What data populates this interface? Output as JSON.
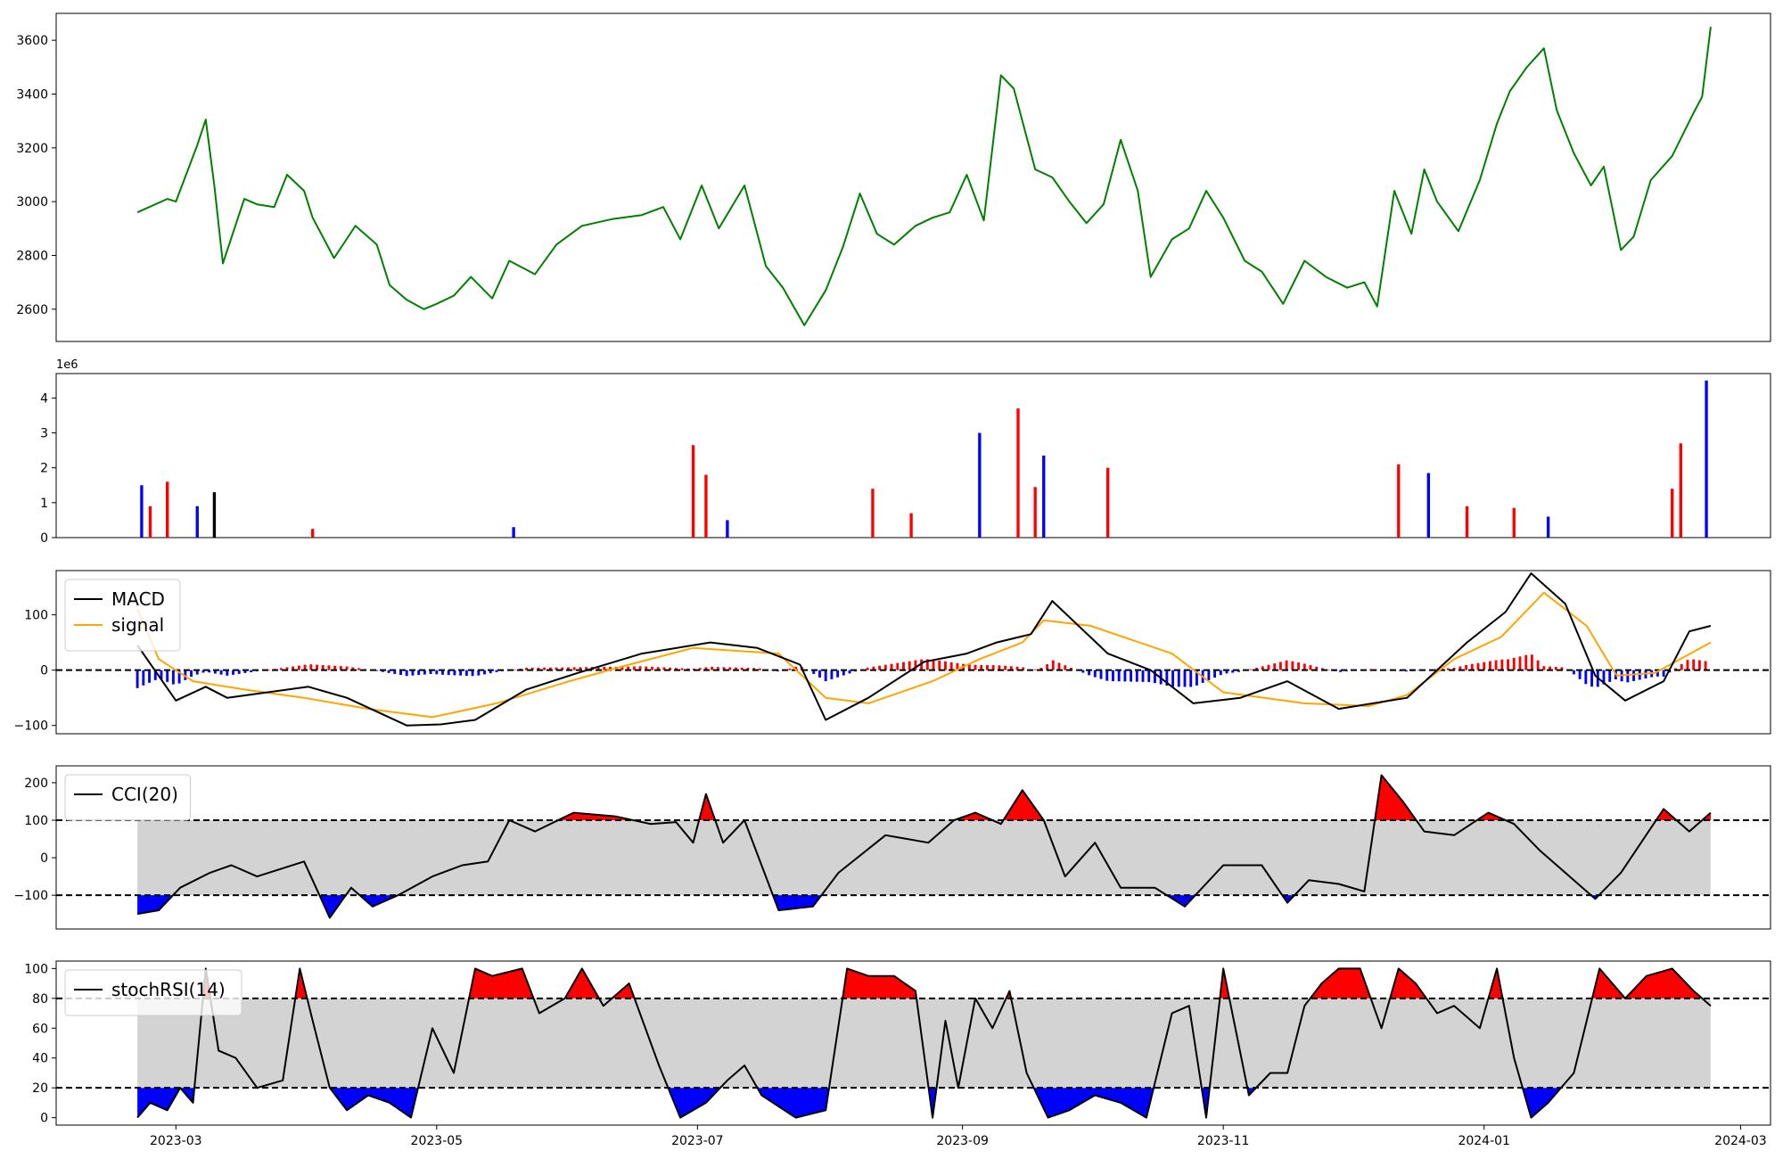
{
  "chart_data": [
    {
      "type": "line",
      "ylim": [
        2480,
        3700
      ],
      "yticks": [
        2600,
        2800,
        3000,
        3200,
        3400,
        3600
      ],
      "color": "#008000",
      "series": [
        {
          "x": [
            "2023-02-20",
            "2023-02-27",
            "2023-03-01",
            "2023-03-06",
            "2023-03-08",
            "2023-03-10",
            "2023-03-12",
            "2023-03-17",
            "2023-03-20",
            "2023-03-24",
            "2023-03-27",
            "2023-03-31",
            "2023-04-02",
            "2023-04-07",
            "2023-04-12",
            "2023-04-17",
            "2023-04-20",
            "2023-04-24",
            "2023-04-28",
            "2023-05-01",
            "2023-05-05",
            "2023-05-09",
            "2023-05-14",
            "2023-05-18",
            "2023-05-24",
            "2023-05-29",
            "2023-06-04",
            "2023-06-11",
            "2023-06-18",
            "2023-06-23",
            "2023-06-27",
            "2023-07-02",
            "2023-07-06",
            "2023-07-12",
            "2023-07-17",
            "2023-07-21",
            "2023-07-26",
            "2023-07-31",
            "2023-08-04",
            "2023-08-08",
            "2023-08-12",
            "2023-08-16",
            "2023-08-21",
            "2023-08-25",
            "2023-08-29",
            "2023-09-02",
            "2023-09-06",
            "2023-09-10",
            "2023-09-13",
            "2023-09-18",
            "2023-09-22",
            "2023-09-26",
            "2023-09-30",
            "2023-10-04",
            "2023-10-08",
            "2023-10-12",
            "2023-10-15",
            "2023-10-20",
            "2023-10-24",
            "2023-10-28",
            "2023-11-01",
            "2023-11-06",
            "2023-11-10",
            "2023-11-15",
            "2023-11-20",
            "2023-11-25",
            "2023-11-30",
            "2023-12-04",
            "2023-12-07",
            "2023-12-11",
            "2023-12-15",
            "2023-12-18",
            "2023-12-21",
            "2023-12-26",
            "2023-12-31",
            "2024-01-04",
            "2024-01-07",
            "2024-01-11",
            "2024-01-15",
            "2024-01-18",
            "2024-01-22",
            "2024-01-26",
            "2024-01-29",
            "2024-02-02",
            "2024-02-05",
            "2024-02-09",
            "2024-02-14",
            "2024-02-19",
            "2024-02-21",
            "2024-02-23"
          ],
          "y": [
            2960,
            3010,
            3000,
            3210,
            3305,
            3060,
            2770,
            3010,
            2990,
            2980,
            3100,
            3040,
            2940,
            2790,
            2910,
            2840,
            2690,
            2635,
            2600,
            2620,
            2650,
            2720,
            2640,
            2780,
            2730,
            2840,
            2910,
            2935,
            2950,
            2980,
            2860,
            3060,
            2900,
            3060,
            2760,
            2680,
            2540,
            2670,
            2830,
            3030,
            2880,
            2840,
            2910,
            2940,
            2960,
            3100,
            2930,
            3470,
            3420,
            3120,
            3090,
            3000,
            2920,
            2990,
            3230,
            3040,
            2720,
            2860,
            2900,
            3040,
            2940,
            2780,
            2740,
            2620,
            2780,
            2720,
            2680,
            2700,
            2610,
            3040,
            2880,
            3120,
            3000,
            2890,
            3080,
            3290,
            3410,
            3500,
            3570,
            3340,
            3180,
            3060,
            3130,
            2820,
            2870,
            3080,
            3170,
            3330,
            3390,
            3650
          ]
        }
      ]
    },
    {
      "type": "bar",
      "ylabel": "",
      "offset_text": "1e6",
      "ylim": [
        0,
        4.7
      ],
      "yticks": [
        0,
        1,
        2,
        3,
        4
      ],
      "colors": {
        "up": "#ff0000",
        "down": "#0000ff",
        "flat": "#000000"
      },
      "series": [
        {
          "x": [
            "2023-02-21",
            "2023-02-23",
            "2023-02-27",
            "2023-03-06",
            "2023-03-10",
            "2023-04-02",
            "2023-05-19",
            "2023-06-30",
            "2023-07-03",
            "2023-07-08",
            "2023-08-11",
            "2023-08-20",
            "2023-09-05",
            "2023-09-14",
            "2023-09-18",
            "2023-09-20",
            "2023-10-05",
            "2023-12-12",
            "2023-12-19",
            "2023-12-28",
            "2024-01-08",
            "2024-01-16",
            "2024-02-14",
            "2024-02-16",
            "2024-02-22"
          ],
          "values": [
            1.5,
            0.9,
            1.6,
            0.9,
            1.3,
            0.25,
            0.3,
            2.65,
            1.8,
            0.5,
            1.4,
            0.7,
            3.0,
            3.7,
            1.45,
            2.35,
            2.0,
            2.1,
            1.85,
            0.9,
            0.85,
            0.6,
            1.4,
            2.7,
            4.5
          ]
        }
      ]
    },
    {
      "type": "line",
      "ylim": [
        -115,
        180
      ],
      "yticks": [
        -100,
        0,
        100
      ],
      "hline": 0,
      "legend": [
        "MACD",
        "signal"
      ],
      "legend_position": "upper-left",
      "series": [
        {
          "name": "MACD",
          "color": "#000000",
          "x": [
            "2023-02-20",
            "2023-03-01",
            "2023-03-08",
            "2023-03-13",
            "2023-04-01",
            "2023-04-10",
            "2023-04-24",
            "2023-05-02",
            "2023-05-10",
            "2023-05-22",
            "2023-06-03",
            "2023-06-18",
            "2023-07-04",
            "2023-07-15",
            "2023-07-25",
            "2023-07-31",
            "2023-08-10",
            "2023-08-23",
            "2023-09-02",
            "2023-09-09",
            "2023-09-17",
            "2023-09-22",
            "2023-10-05",
            "2023-10-15",
            "2023-10-25",
            "2023-11-05",
            "2023-11-16",
            "2023-11-28",
            "2023-12-06",
            "2023-12-14",
            "2023-12-28",
            "2024-01-06",
            "2024-01-12",
            "2024-01-20",
            "2024-01-27",
            "2024-02-03",
            "2024-02-12",
            "2024-02-18",
            "2024-02-23"
          ],
          "values": [
            45,
            -55,
            -30,
            -50,
            -30,
            -50,
            -100,
            -98,
            -90,
            -35,
            -5,
            30,
            50,
            40,
            10,
            -90,
            -50,
            15,
            30,
            50,
            65,
            125,
            30,
            0,
            -60,
            -50,
            -20,
            -70,
            -60,
            -50,
            50,
            105,
            175,
            120,
            -10,
            -55,
            -20,
            70,
            80
          ]
        },
        {
          "name": "signal",
          "color": "#ffa500",
          "x": [
            "2023-02-20",
            "2023-02-25",
            "2023-03-05",
            "2023-03-17",
            "2023-03-31",
            "2023-04-15",
            "2023-04-30",
            "2023-05-15",
            "2023-06-01",
            "2023-06-15",
            "2023-06-30",
            "2023-07-20",
            "2023-07-31",
            "2023-08-10",
            "2023-08-25",
            "2023-09-05",
            "2023-09-15",
            "2023-09-20",
            "2023-10-01",
            "2023-10-20",
            "2023-11-01",
            "2023-11-20",
            "2023-12-05",
            "2023-12-14",
            "2023-12-25",
            "2024-01-05",
            "2024-01-15",
            "2024-01-25",
            "2024-02-01",
            "2024-02-10",
            "2024-02-23"
          ],
          "values": [
            110,
            20,
            -20,
            -35,
            -50,
            -70,
            -85,
            -60,
            -20,
            10,
            40,
            30,
            -50,
            -60,
            -20,
            20,
            50,
            90,
            80,
            30,
            -40,
            -60,
            -65,
            -45,
            20,
            60,
            140,
            80,
            -10,
            -5,
            50
          ]
        }
      ],
      "histogram_colors": {
        "positive": "#ff0000",
        "negative": "#0000ff"
      }
    },
    {
      "type": "line",
      "ylim": [
        -190,
        245
      ],
      "yticks": [
        -100,
        0,
        100,
        200
      ],
      "band": [
        -100,
        100
      ],
      "band_color": "#d3d3d3",
      "fill_above_color": "#ff0000",
      "fill_below_color": "#0000ff",
      "legend": [
        "CCI(20)"
      ],
      "legend_position": "upper-left",
      "series": [
        {
          "name": "CCI(20)",
          "color": "#000000",
          "x": [
            "2023-02-20",
            "2023-02-25",
            "2023-03-02",
            "2023-03-09",
            "2023-03-14",
            "2023-03-20",
            "2023-03-31",
            "2023-04-06",
            "2023-04-11",
            "2023-04-16",
            "2023-04-22",
            "2023-04-30",
            "2023-05-07",
            "2023-05-13",
            "2023-05-18",
            "2023-05-24",
            "2023-06-02",
            "2023-06-12",
            "2023-06-20",
            "2023-06-26",
            "2023-06-30",
            "2023-07-03",
            "2023-07-07",
            "2023-07-12",
            "2023-07-20",
            "2023-07-28",
            "2023-08-03",
            "2023-08-14",
            "2023-08-24",
            "2023-08-30",
            "2023-09-04",
            "2023-09-10",
            "2023-09-15",
            "2023-09-20",
            "2023-09-25",
            "2023-10-02",
            "2023-10-08",
            "2023-10-16",
            "2023-10-23",
            "2023-11-01",
            "2023-11-10",
            "2023-11-16",
            "2023-11-21",
            "2023-11-28",
            "2023-12-04",
            "2023-12-08",
            "2023-12-13",
            "2023-12-18",
            "2023-12-25",
            "2024-01-02",
            "2024-01-08",
            "2024-01-14",
            "2024-01-20",
            "2024-01-27",
            "2024-02-02",
            "2024-02-12",
            "2024-02-18",
            "2024-02-23"
          ],
          "values": [
            -150,
            -140,
            -80,
            -40,
            -20,
            -50,
            -10,
            -160,
            -80,
            -130,
            -100,
            -50,
            -20,
            -10,
            100,
            70,
            120,
            110,
            90,
            95,
            40,
            170,
            40,
            100,
            -140,
            -130,
            -40,
            60,
            40,
            100,
            120,
            90,
            180,
            100,
            -50,
            40,
            -80,
            -80,
            -130,
            -20,
            -20,
            -120,
            -60,
            -70,
            -90,
            220,
            150,
            70,
            60,
            120,
            90,
            20,
            -40,
            -110,
            -40,
            130,
            70,
            120
          ]
        }
      ]
    },
    {
      "type": "line",
      "ylim": [
        -5,
        105
      ],
      "yticks": [
        0,
        20,
        40,
        60,
        80,
        100
      ],
      "band": [
        20,
        80
      ],
      "band_color": "#d3d3d3",
      "fill_above_color": "#ff0000",
      "fill_below_color": "#0000ff",
      "legend": [
        "stochRSI(14)"
      ],
      "legend_position": "upper-left",
      "series": [
        {
          "name": "stochRSI(14)",
          "color": "#000000",
          "x": [
            "2023-02-20",
            "2023-02-23",
            "2023-02-27",
            "2023-03-02",
            "2023-03-05",
            "2023-03-08",
            "2023-03-11",
            "2023-03-15",
            "2023-03-20",
            "2023-03-26",
            "2023-03-30",
            "2023-04-02",
            "2023-04-06",
            "2023-04-10",
            "2023-04-15",
            "2023-04-20",
            "2023-04-25",
            "2023-04-30",
            "2023-05-05",
            "2023-05-10",
            "2023-05-14",
            "2023-05-21",
            "2023-05-25",
            "2023-05-31",
            "2023-06-04",
            "2023-06-09",
            "2023-06-15",
            "2023-06-22",
            "2023-06-27",
            "2023-07-03",
            "2023-07-08",
            "2023-07-12",
            "2023-07-16",
            "2023-07-24",
            "2023-07-31",
            "2023-08-05",
            "2023-08-10",
            "2023-08-16",
            "2023-08-21",
            "2023-08-25",
            "2023-08-28",
            "2023-08-31",
            "2023-09-04",
            "2023-09-08",
            "2023-09-12",
            "2023-09-16",
            "2023-09-21",
            "2023-09-26",
            "2023-10-02",
            "2023-10-08",
            "2023-10-14",
            "2023-10-20",
            "2023-10-24",
            "2023-10-28",
            "2023-11-01",
            "2023-11-07",
            "2023-11-12",
            "2023-11-16",
            "2023-11-20",
            "2023-11-24",
            "2023-11-28",
            "2023-12-03",
            "2023-12-08",
            "2023-12-12",
            "2023-12-16",
            "2023-12-21",
            "2023-12-25",
            "2023-12-31",
            "2024-01-04",
            "2024-01-08",
            "2024-01-12",
            "2024-01-16",
            "2024-01-22",
            "2024-01-28",
            "2024-02-03",
            "2024-02-08",
            "2024-02-14",
            "2024-02-19",
            "2024-02-23"
          ],
          "values": [
            0,
            10,
            5,
            20,
            10,
            100,
            45,
            40,
            20,
            25,
            100,
            65,
            20,
            5,
            15,
            10,
            0,
            60,
            30,
            100,
            95,
            100,
            70,
            80,
            100,
            75,
            90,
            35,
            0,
            10,
            25,
            35,
            15,
            0,
            5,
            100,
            95,
            95,
            85,
            0,
            65,
            20,
            80,
            60,
            85,
            30,
            0,
            5,
            15,
            10,
            0,
            70,
            75,
            0,
            100,
            15,
            30,
            30,
            75,
            90,
            100,
            100,
            60,
            100,
            90,
            70,
            75,
            60,
            100,
            40,
            0,
            10,
            30,
            100,
            80,
            95,
            100,
            85,
            75
          ]
        }
      ]
    }
  ],
  "x_axis": {
    "range": [
      "2023-02-01",
      "2024-03-08"
    ],
    "ticks": [
      "2023-03-01",
      "2023-05-01",
      "2023-07-01",
      "2023-09-01",
      "2023-11-01",
      "2024-01-01",
      "2024-03-01"
    ],
    "tick_labels": [
      "2023-03",
      "2023-05",
      "2023-07",
      "2023-09",
      "2023-11",
      "2024-01",
      "2024-03"
    ]
  }
}
